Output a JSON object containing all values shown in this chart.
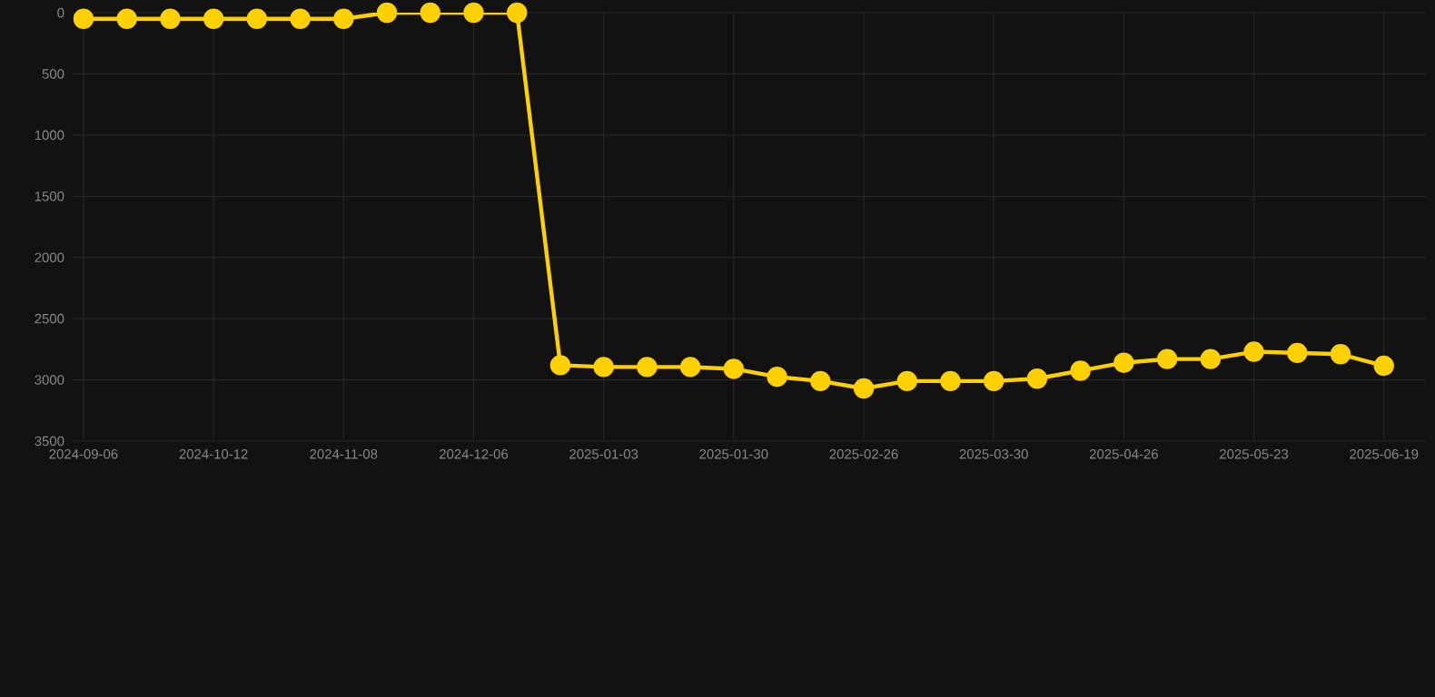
{
  "chart_data": {
    "type": "line",
    "categories": [
      "2024-09-06",
      null,
      null,
      "2024-10-12",
      null,
      null,
      "2024-11-08",
      null,
      null,
      "2024-12-06",
      null,
      null,
      "2025-01-03",
      null,
      null,
      "2025-01-30",
      null,
      null,
      "2025-02-26",
      null,
      null,
      "2025-03-30",
      null,
      null,
      "2025-04-26",
      null,
      null,
      "2025-05-23",
      null,
      null,
      "2025-06-19"
    ],
    "series": [
      {
        "color": "#ffd000",
        "values": [
          50,
          50,
          50,
          50,
          50,
          50,
          50,
          0,
          0,
          0,
          0,
          2880,
          2895,
          2895,
          2895,
          2910,
          2975,
          3010,
          3070,
          3010,
          3010,
          3010,
          2990,
          2925,
          2860,
          2830,
          2830,
          2770,
          2780,
          2790,
          2885
        ]
      }
    ],
    "ylim": [
      3500,
      0
    ],
    "yticks": [
      0,
      500,
      1000,
      1500,
      2000,
      2500,
      3000,
      3500
    ],
    "grid": true,
    "marker": "circle",
    "line_style": "solid"
  }
}
